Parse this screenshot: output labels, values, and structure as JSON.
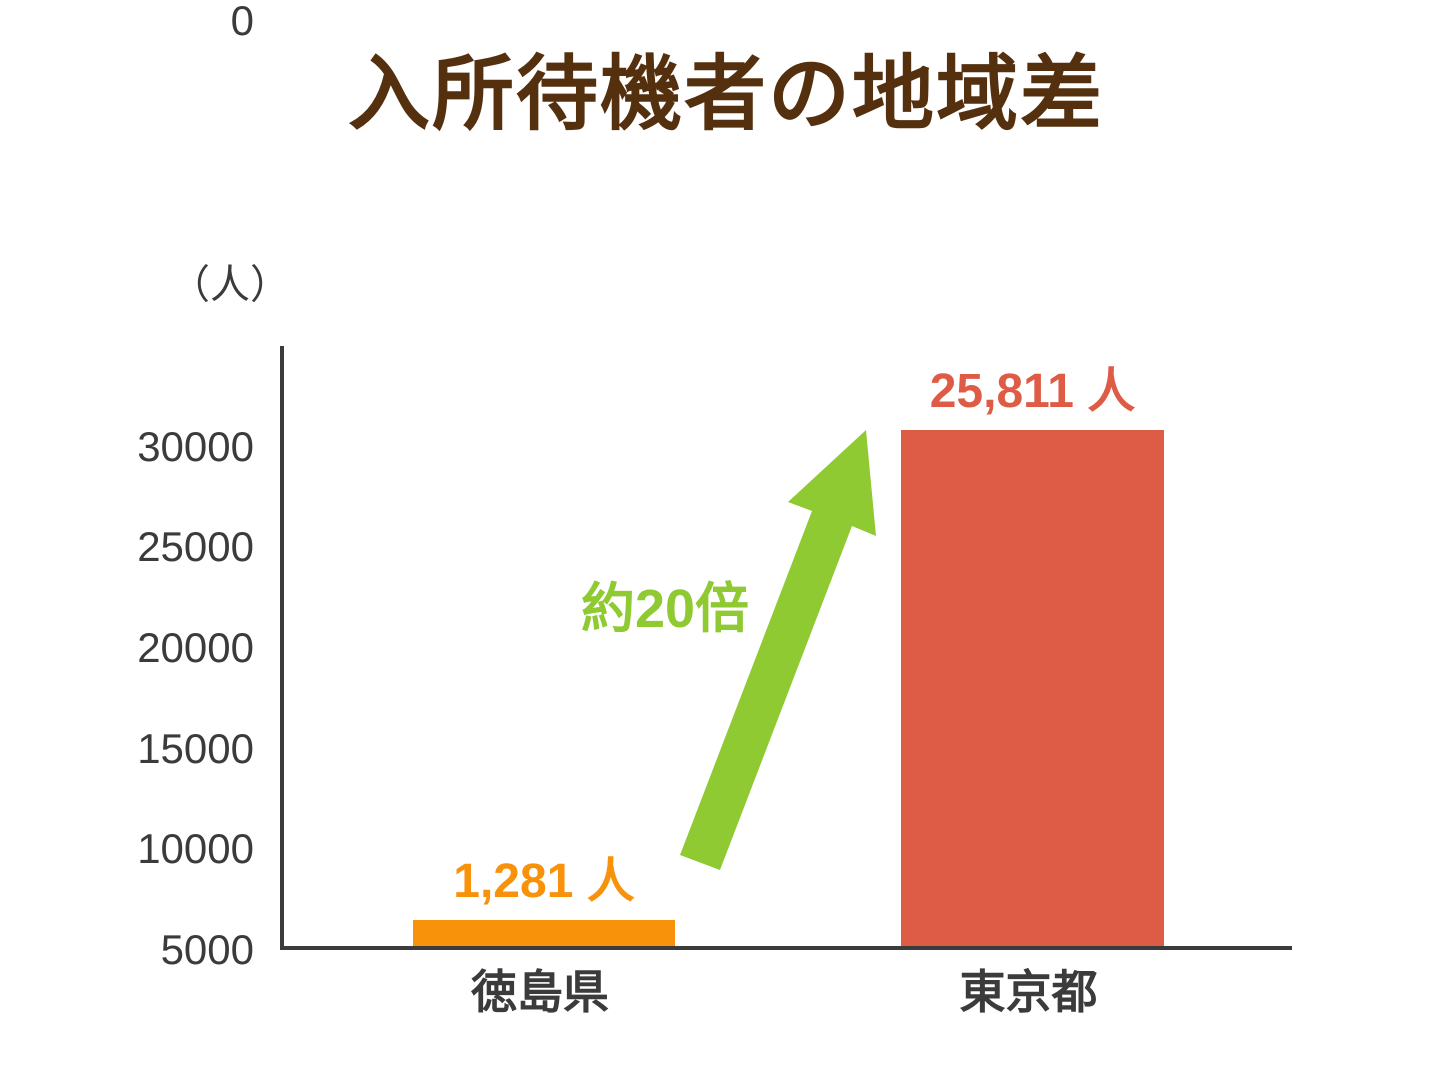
{
  "page": {
    "background_color": "#ffffff"
  },
  "chart_data": {
    "type": "bar",
    "title": "入所待機者の地域差",
    "title_color": "#55300f",
    "unit_label": "（人）",
    "categories": [
      "徳島県",
      "東京都"
    ],
    "values": [
      1281,
      25811
    ],
    "value_labels": [
      "1,281 人",
      "25,811 人"
    ],
    "bar_colors": [
      "#f8920b",
      "#de5c46"
    ],
    "value_label_colors": [
      "#f8920b",
      "#de5c46"
    ],
    "ylim": [
      0,
      30000
    ],
    "ytick_labels": [
      "30000",
      "25000",
      "20000",
      "15000",
      "10000",
      "5000",
      "0"
    ],
    "xlabel": "",
    "ylabel": "（人）",
    "grid": false,
    "legend": "none",
    "axis_color": "#3b3b3b",
    "annotation": {
      "text": "約20倍",
      "color": "#90ca33"
    },
    "arrow": {
      "direction": "up-right",
      "color": "#90ca33"
    }
  }
}
